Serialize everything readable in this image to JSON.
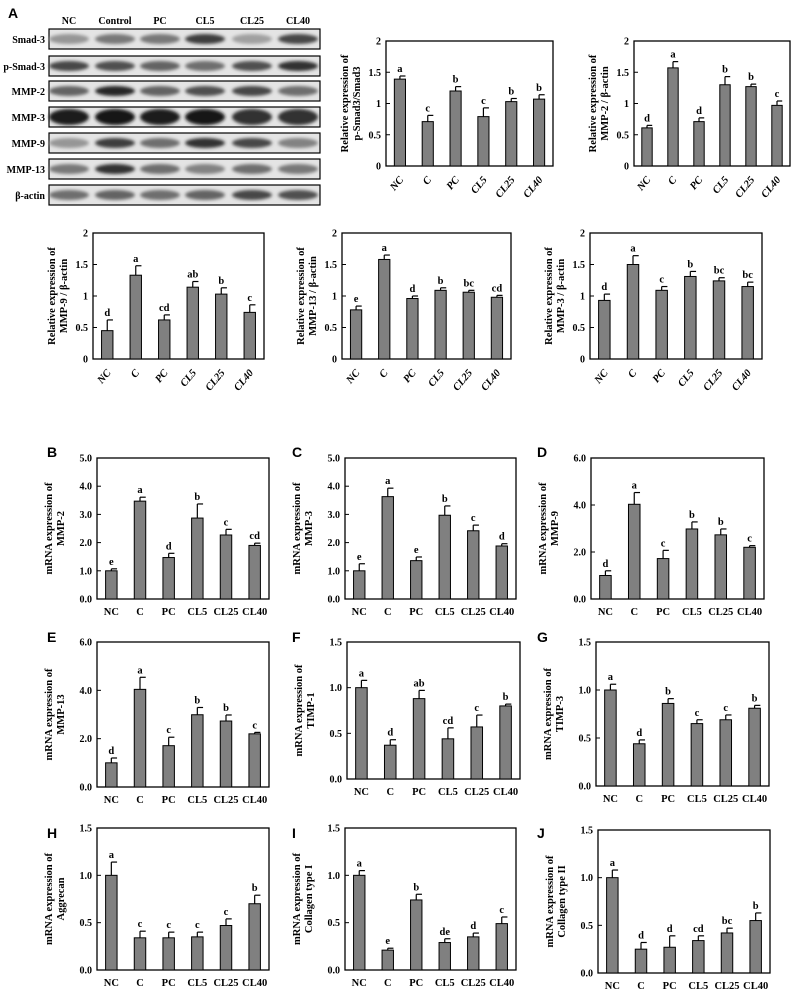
{
  "panel_letters": [
    "A",
    "B",
    "C",
    "D",
    "E",
    "F",
    "G",
    "H",
    "I",
    "J"
  ],
  "western_blot": {
    "lanes": [
      "NC",
      "Control",
      "PC",
      "CL5",
      "CL25",
      "CL40"
    ],
    "proteins": [
      "Smad-3",
      "p-Smad-3",
      "MMP-2",
      "MMP-3",
      "MMP-9",
      "MMP-13",
      "β-actin"
    ]
  },
  "chart_data": [
    {
      "panel": "A",
      "type": "bar",
      "categories": [
        "NC",
        "C",
        "PC",
        "CL5",
        "CL25",
        "CL40"
      ],
      "ylabel": [
        "Relative expression of",
        "p-Smad3/Smad3"
      ],
      "ylim": [
        0,
        2
      ],
      "yticks": [
        "0",
        "0.5",
        "1",
        "1.5",
        "2"
      ],
      "values": [
        1.39,
        0.71,
        1.2,
        0.79,
        1.03,
        1.07
      ],
      "errors": [
        0.05,
        0.1,
        0.07,
        0.14,
        0.05,
        0.07
      ],
      "letters": [
        "a",
        "c",
        "b",
        "c",
        "b",
        "b"
      ],
      "xlabel_style": "italic-rotated"
    },
    {
      "panel": "A",
      "type": "bar",
      "categories": [
        "NC",
        "C",
        "PC",
        "CL5",
        "CL25",
        "CL40"
      ],
      "ylabel": [
        "Relative expression of",
        "MMP-2 / β-actin"
      ],
      "ylim": [
        0,
        2
      ],
      "yticks": [
        "0",
        "0.5",
        "1",
        "1.5",
        "2"
      ],
      "values": [
        0.61,
        1.57,
        0.71,
        1.3,
        1.27,
        0.97
      ],
      "errors": [
        0.04,
        0.1,
        0.06,
        0.13,
        0.04,
        0.07
      ],
      "letters": [
        "d",
        "a",
        "d",
        "b",
        "b",
        "c"
      ],
      "xlabel_style": "italic-rotated"
    },
    {
      "panel": "A",
      "type": "bar",
      "categories": [
        "NC",
        "C",
        "PC",
        "CL5",
        "CL25",
        "CL40"
      ],
      "ylabel": [
        "Relative expression of",
        "MMP-9 / β-actin"
      ],
      "ylim": [
        0,
        2
      ],
      "yticks": [
        "0",
        "0.5",
        "1",
        "1.5",
        "2"
      ],
      "values": [
        0.45,
        1.33,
        0.62,
        1.14,
        1.03,
        0.74
      ],
      "errors": [
        0.17,
        0.15,
        0.08,
        0.09,
        0.1,
        0.12
      ],
      "letters": [
        "d",
        "a",
        "cd",
        "ab",
        "b",
        "c"
      ],
      "xlabel_style": "italic-rotated"
    },
    {
      "panel": "A",
      "type": "bar",
      "categories": [
        "NC",
        "C",
        "PC",
        "CL5",
        "CL25",
        "CL40"
      ],
      "ylabel": [
        "Relative expression of",
        "MMP-13 / β-actin"
      ],
      "ylim": [
        0,
        2
      ],
      "yticks": [
        "0",
        "0.5",
        "1",
        "1.5",
        "2"
      ],
      "values": [
        0.78,
        1.58,
        0.96,
        1.09,
        1.06,
        0.98
      ],
      "errors": [
        0.06,
        0.07,
        0.04,
        0.04,
        0.03,
        0.03
      ],
      "letters": [
        "e",
        "a",
        "d",
        "b",
        "bc",
        "cd"
      ],
      "xlabel_style": "italic-rotated"
    },
    {
      "panel": "A",
      "type": "bar",
      "categories": [
        "NC",
        "C",
        "PC",
        "CL5",
        "CL25",
        "CL40"
      ],
      "ylabel": [
        "Relative expression of",
        "MMP-3 / β-actin"
      ],
      "ylim": [
        0,
        2
      ],
      "yticks": [
        "0",
        "0.5",
        "1",
        "1.5",
        "2"
      ],
      "values": [
        0.93,
        1.5,
        1.09,
        1.31,
        1.24,
        1.15
      ],
      "errors": [
        0.1,
        0.14,
        0.06,
        0.08,
        0.05,
        0.07
      ],
      "letters": [
        "d",
        "a",
        "c",
        "b",
        "bc",
        "bc"
      ],
      "xlabel_style": "italic-rotated"
    },
    {
      "panel": "B",
      "type": "bar",
      "categories": [
        "NC",
        "C",
        "PC",
        "CL5",
        "CL25",
        "CL40"
      ],
      "ylabel": [
        "mRNA expression of",
        "MMP-2"
      ],
      "ylim": [
        0,
        5
      ],
      "yticks": [
        "0.0",
        "1.0",
        "2.0",
        "3.0",
        "4.0",
        "5.0"
      ],
      "values": [
        1.0,
        3.47,
        1.47,
        2.87,
        2.27,
        1.9
      ],
      "errors": [
        0.07,
        0.14,
        0.15,
        0.5,
        0.2,
        0.08
      ],
      "letters": [
        "e",
        "a",
        "d",
        "b",
        "c",
        "cd"
      ]
    },
    {
      "panel": "C",
      "type": "bar",
      "categories": [
        "NC",
        "C",
        "PC",
        "CL5",
        "CL25",
        "CL40"
      ],
      "ylabel": [
        "mRNA expression of",
        "MMP-3"
      ],
      "ylim": [
        0,
        5
      ],
      "yticks": [
        "0.0",
        "1.0",
        "2.0",
        "3.0",
        "4.0",
        "5.0"
      ],
      "values": [
        1.0,
        3.63,
        1.36,
        2.97,
        2.42,
        1.88
      ],
      "errors": [
        0.25,
        0.3,
        0.13,
        0.33,
        0.2,
        0.08
      ],
      "letters": [
        "e",
        "a",
        "e",
        "b",
        "c",
        "d"
      ]
    },
    {
      "panel": "D",
      "type": "bar",
      "categories": [
        "NC",
        "C",
        "PC",
        "CL5",
        "CL25",
        "CL40"
      ],
      "ylabel": [
        "mRNA expression of",
        "MMP-9"
      ],
      "ylim": [
        0,
        6
      ],
      "yticks": [
        "0.0",
        "2.0",
        "4.0",
        "6.0"
      ],
      "values": [
        1.0,
        4.03,
        1.72,
        2.98,
        2.73,
        2.2
      ],
      "errors": [
        0.2,
        0.5,
        0.35,
        0.3,
        0.25,
        0.07
      ],
      "letters": [
        "d",
        "a",
        "c",
        "b",
        "b",
        "c"
      ]
    },
    {
      "panel": "E",
      "type": "bar",
      "categories": [
        "NC",
        "C",
        "PC",
        "CL5",
        "CL25",
        "CL40"
      ],
      "ylabel": [
        "mRNA expression of",
        "MMP-13"
      ],
      "ylim": [
        0,
        6
      ],
      "yticks": [
        "0.0",
        "2.0",
        "4.0",
        "6.0"
      ],
      "values": [
        1.0,
        4.04,
        1.71,
        2.99,
        2.73,
        2.2
      ],
      "errors": [
        0.2,
        0.5,
        0.35,
        0.3,
        0.25,
        0.06
      ],
      "letters": [
        "d",
        "a",
        "c",
        "b",
        "b",
        "c"
      ]
    },
    {
      "panel": "F",
      "type": "bar",
      "categories": [
        "NC",
        "C",
        "PC",
        "CL5",
        "CL25",
        "CL40"
      ],
      "ylabel": [
        "mRNA expression of",
        "TIMP-1"
      ],
      "ylim": [
        0,
        1.5
      ],
      "yticks": [
        "0.0",
        "0.5",
        "1.0",
        "1.5"
      ],
      "values": [
        1.0,
        0.37,
        0.88,
        0.44,
        0.57,
        0.8
      ],
      "errors": [
        0.08,
        0.06,
        0.09,
        0.12,
        0.13,
        0.02
      ],
      "letters": [
        "a",
        "d",
        "ab",
        "cd",
        "c",
        "b"
      ]
    },
    {
      "panel": "G",
      "type": "bar",
      "categories": [
        "NC",
        "C",
        "PC",
        "CL5",
        "CL25",
        "CL40"
      ],
      "ylabel": [
        "mRNA expression of",
        "TIMP-3"
      ],
      "ylim": [
        0,
        1.5
      ],
      "yticks": [
        "0.0",
        "0.5",
        "1.0",
        "1.5"
      ],
      "values": [
        1.0,
        0.44,
        0.86,
        0.65,
        0.69,
        0.81
      ],
      "errors": [
        0.06,
        0.04,
        0.05,
        0.04,
        0.05,
        0.03
      ],
      "letters": [
        "a",
        "d",
        "b",
        "c",
        "c",
        "b"
      ]
    },
    {
      "panel": "H",
      "type": "bar",
      "categories": [
        "NC",
        "C",
        "PC",
        "CL5",
        "CL25",
        "CL40"
      ],
      "ylabel": [
        "mRNA expression of",
        "Aggrecan"
      ],
      "ylim": [
        0,
        1.5
      ],
      "yticks": [
        "0.0",
        "0.5",
        "1.0",
        "1.5"
      ],
      "values": [
        1.0,
        0.34,
        0.34,
        0.35,
        0.47,
        0.7
      ],
      "errors": [
        0.14,
        0.07,
        0.06,
        0.05,
        0.07,
        0.09
      ],
      "letters": [
        "a",
        "c",
        "c",
        "c",
        "c",
        "b"
      ]
    },
    {
      "panel": "I",
      "type": "bar",
      "categories": [
        "NC",
        "C",
        "PC",
        "CL5",
        "CL25",
        "CL40"
      ],
      "ylabel": [
        "mRNA expression of",
        "Collagen type I"
      ],
      "ylim": [
        0,
        1.5
      ],
      "yticks": [
        "0.0",
        "0.5",
        "1.0",
        "1.5"
      ],
      "values": [
        1.0,
        0.21,
        0.74,
        0.29,
        0.35,
        0.49
      ],
      "errors": [
        0.05,
        0.02,
        0.06,
        0.04,
        0.04,
        0.07
      ],
      "letters": [
        "a",
        "e",
        "b",
        "de",
        "d",
        "c"
      ]
    },
    {
      "panel": "J",
      "type": "bar",
      "categories": [
        "NC",
        "C",
        "PC",
        "CL5",
        "CL25",
        "CL40"
      ],
      "ylabel": [
        "mRNA expression of",
        "Collagen type II"
      ],
      "ylim": [
        0,
        1.5
      ],
      "yticks": [
        "0.0",
        "0.5",
        "1.0",
        "1.5"
      ],
      "values": [
        1.0,
        0.25,
        0.27,
        0.34,
        0.42,
        0.55
      ],
      "errors": [
        0.08,
        0.07,
        0.12,
        0.05,
        0.05,
        0.08
      ],
      "letters": [
        "a",
        "d",
        "d",
        "cd",
        "bc",
        "b"
      ]
    }
  ],
  "colors": {
    "bar_fill": "#808080",
    "bar_stroke": "#000000",
    "axis": "#000000"
  }
}
